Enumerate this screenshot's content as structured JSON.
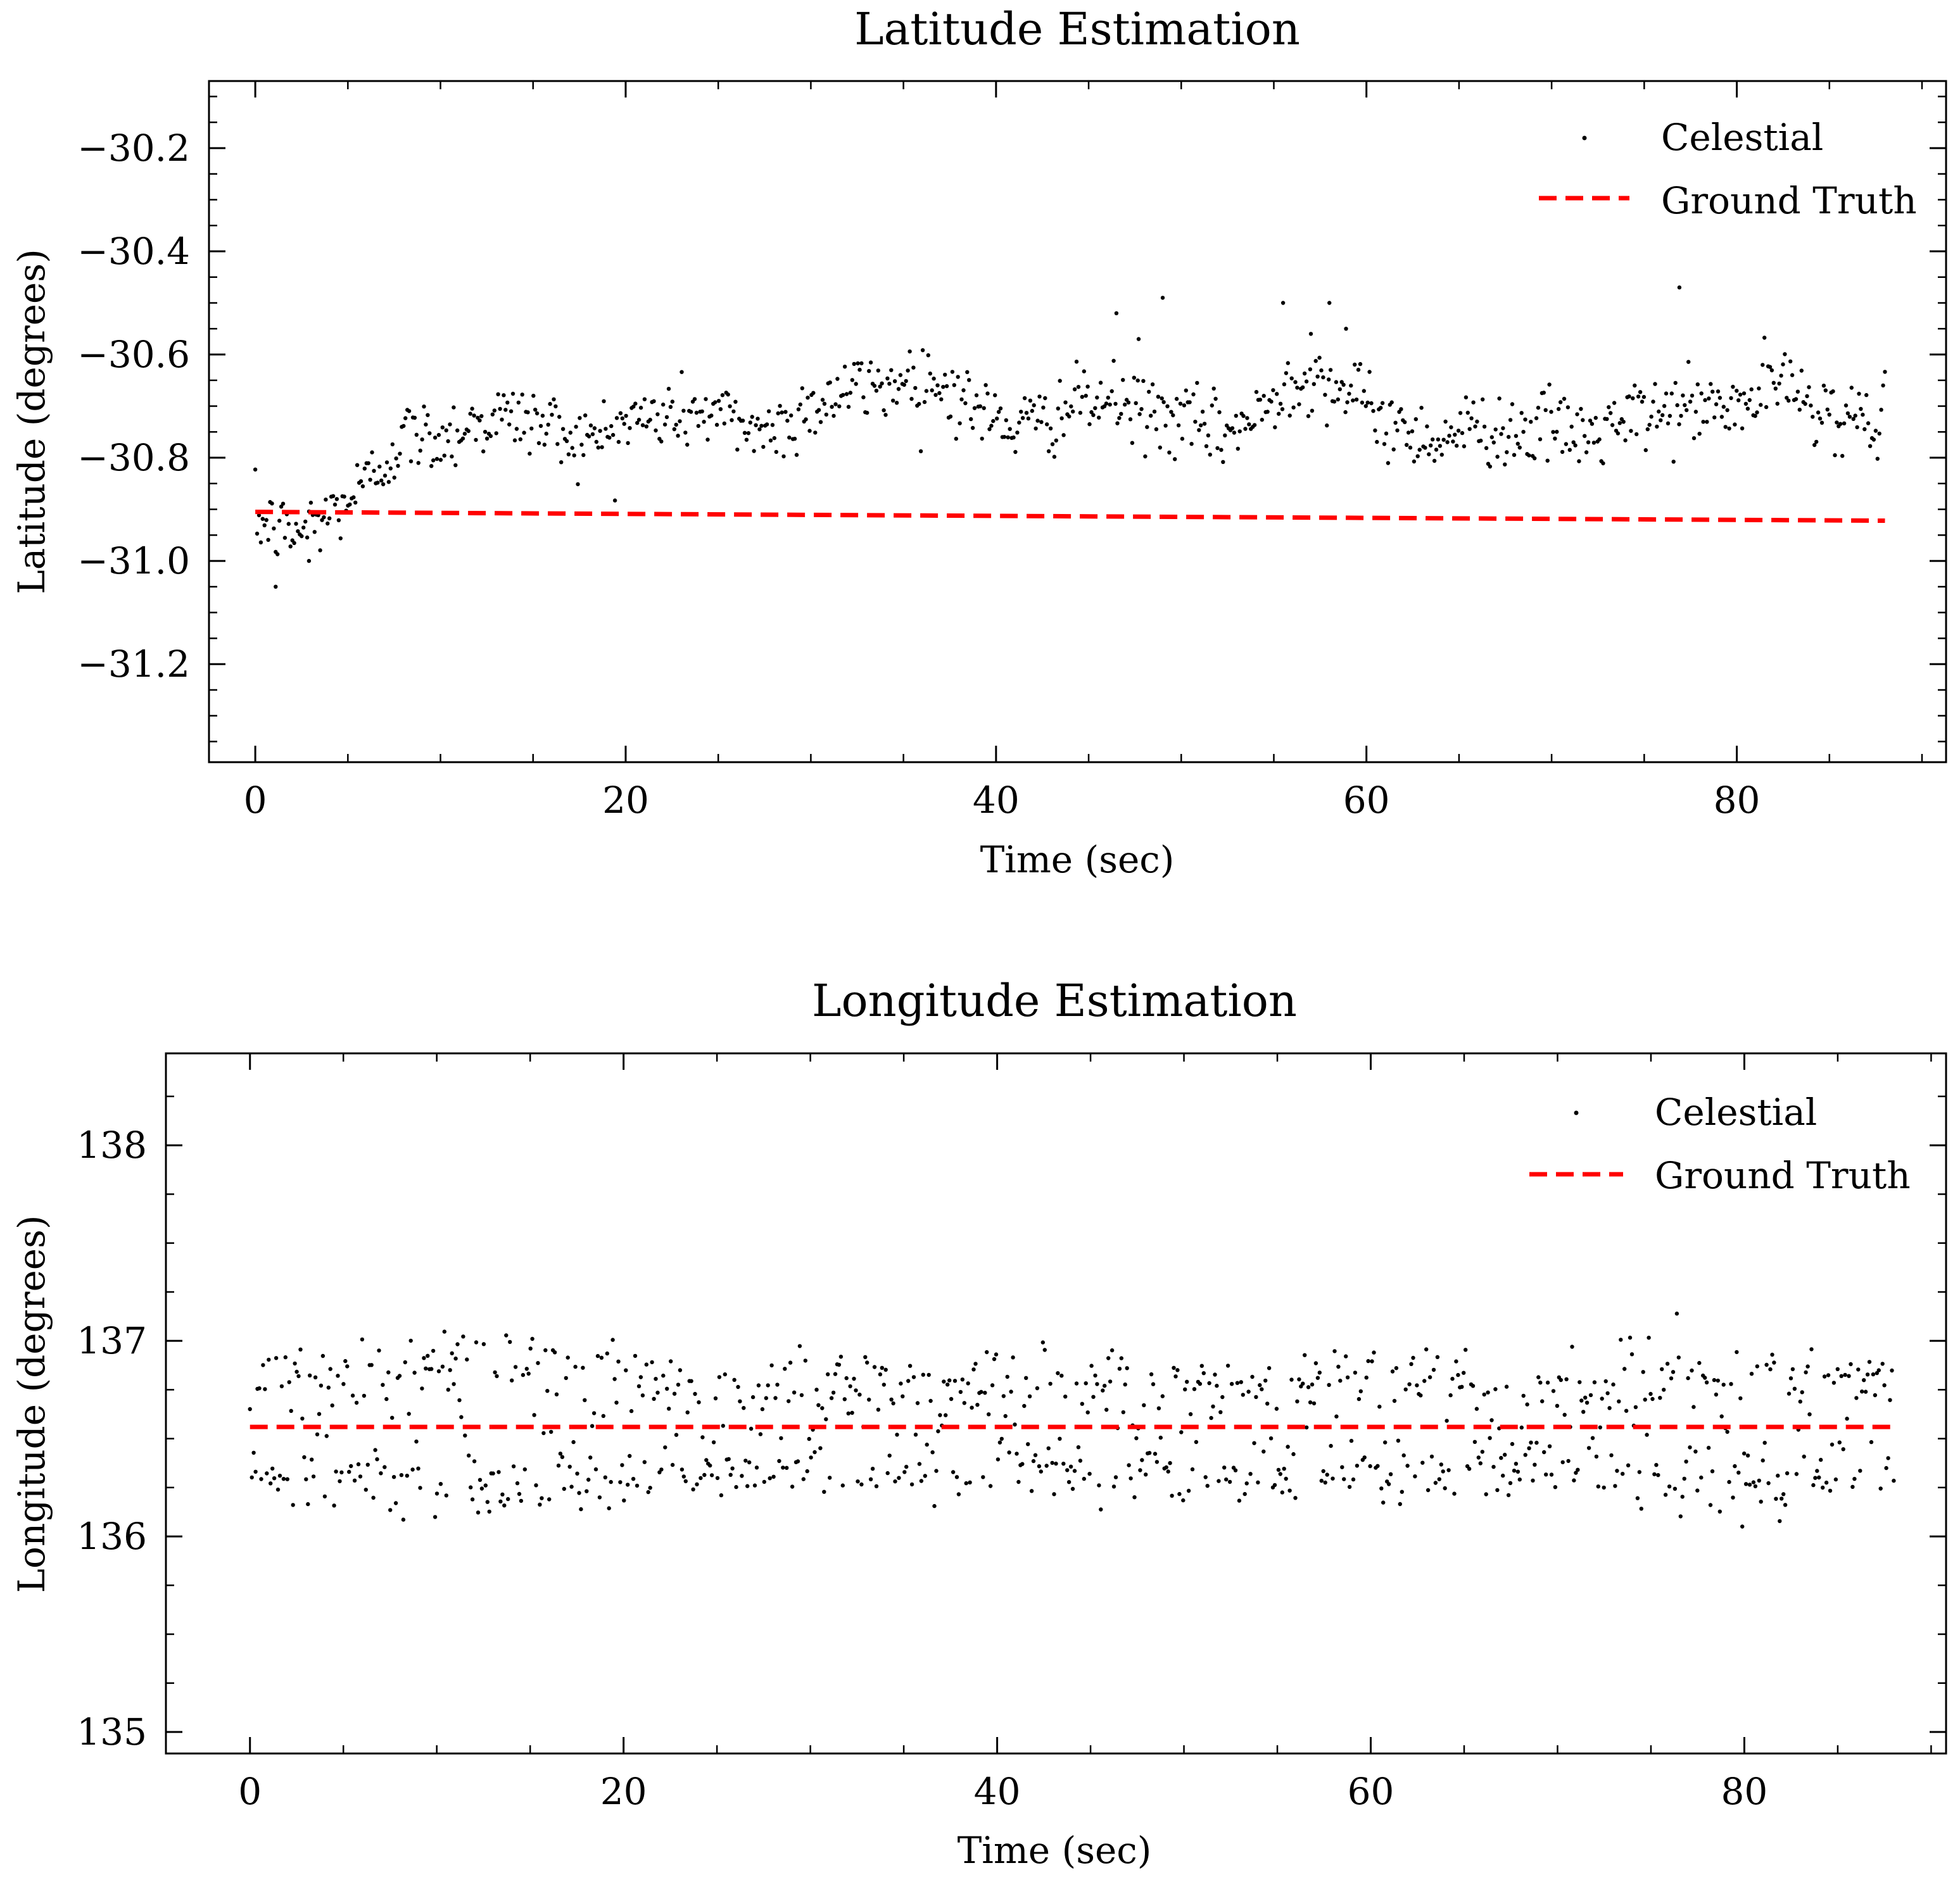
{
  "colors": {
    "scatter": "#000000",
    "ground_truth": "#ff0000",
    "axes": "#000000",
    "background": "#ffffff"
  },
  "chart_data": [
    {
      "type": "scatter",
      "title": "Latitude Estimation",
      "xlabel": "Time (sec)",
      "ylabel": "Latitude (degrees)",
      "xlim": [
        -2.5,
        91.3
      ],
      "ylim": [
        -31.39,
        -30.07
      ],
      "xticks": [
        0,
        20,
        40,
        60,
        80
      ],
      "xtick_labels": [
        "0",
        "20",
        "40",
        "60",
        "80"
      ],
      "yticks": [
        -30.2,
        -30.4,
        -30.6,
        -30.8,
        -31.0,
        -31.2
      ],
      "ytick_labels": [
        "−30.2",
        "−30.4",
        "−30.6",
        "−30.8",
        "−31.0",
        "−31.2"
      ],
      "legend": {
        "location": "upper right",
        "entries": [
          "Celestial",
          "Ground Truth"
        ]
      },
      "series": [
        {
          "name": "Celestial",
          "kind": "points",
          "n_points": 880,
          "x_range": [
            0,
            88
          ],
          "trend": [
            [
              0,
              -30.92
            ],
            [
              2,
              -30.95
            ],
            [
              4,
              -30.91
            ],
            [
              6,
              -30.85
            ],
            [
              8,
              -30.76
            ],
            [
              10,
              -30.76
            ],
            [
              12,
              -30.73
            ],
            [
              14,
              -30.72
            ],
            [
              16,
              -30.74
            ],
            [
              18,
              -30.77
            ],
            [
              20,
              -30.73
            ],
            [
              22,
              -30.72
            ],
            [
              24,
              -30.71
            ],
            [
              26,
              -30.73
            ],
            [
              28,
              -30.75
            ],
            [
              30,
              -30.7
            ],
            [
              32,
              -30.67
            ],
            [
              34,
              -30.66
            ],
            [
              36,
              -30.64
            ],
            [
              38,
              -30.68
            ],
            [
              40,
              -30.73
            ],
            [
              42,
              -30.74
            ],
            [
              44,
              -30.7
            ],
            [
              46,
              -30.69
            ],
            [
              48,
              -30.71
            ],
            [
              50,
              -30.73
            ],
            [
              52,
              -30.75
            ],
            [
              54,
              -30.73
            ],
            [
              56,
              -30.64
            ],
            [
              58,
              -30.65
            ],
            [
              60,
              -30.7
            ],
            [
              62,
              -30.75
            ],
            [
              64,
              -30.76
            ],
            [
              66,
              -30.74
            ],
            [
              68,
              -30.75
            ],
            [
              70,
              -30.74
            ],
            [
              72,
              -30.76
            ],
            [
              74,
              -30.73
            ],
            [
              76,
              -30.71
            ],
            [
              78,
              -30.7
            ],
            [
              80,
              -30.71
            ],
            [
              82,
              -30.65
            ],
            [
              84,
              -30.69
            ],
            [
              86,
              -30.73
            ],
            [
              88,
              -30.71
            ]
          ],
          "spread": 0.035,
          "outliers": [
            [
              1.1,
              -31.05
            ],
            [
              2.9,
              -31.0
            ],
            [
              46.5,
              -30.52
            ],
            [
              47.7,
              -30.57
            ],
            [
              49.0,
              -30.49
            ],
            [
              55.5,
              -30.5
            ],
            [
              58.0,
              -30.5
            ],
            [
              76.9,
              -30.47
            ],
            [
              57.0,
              -30.56
            ],
            [
              58.9,
              -30.55
            ]
          ]
        },
        {
          "name": "Ground Truth",
          "kind": "dashed-line",
          "x": [
            0,
            88
          ],
          "y": [
            -30.905,
            -30.922
          ]
        }
      ]
    },
    {
      "type": "scatter",
      "title": "Longitude Estimation",
      "xlabel": "Time (sec)",
      "ylabel": "Longitude (degrees)",
      "xlim": [
        -4.5,
        90.8
      ],
      "ylim": [
        134.89,
        138.47
      ],
      "xticks": [
        0,
        20,
        40,
        60,
        80
      ],
      "xtick_labels": [
        "0",
        "20",
        "40",
        "60",
        "80"
      ],
      "yticks": [
        135,
        136,
        137,
        138
      ],
      "ytick_labels": [
        "135",
        "136",
        "137",
        "138"
      ],
      "legend": {
        "location": "upper right",
        "entries": [
          "Celestial",
          "Ground Truth"
        ]
      },
      "series": [
        {
          "name": "Celestial",
          "kind": "points",
          "n_points": 880,
          "x_range": [
            0,
            88
          ],
          "center": 136.56,
          "band_halfwidth": [
            [
              0,
              0.3
            ],
            [
              10,
              0.42
            ],
            [
              20,
              0.32
            ],
            [
              30,
              0.28
            ],
            [
              40,
              0.28
            ],
            [
              50,
              0.27
            ],
            [
              60,
              0.34
            ],
            [
              70,
              0.25
            ],
            [
              76,
              0.38
            ],
            [
              88,
              0.33
            ]
          ],
          "spread": 0.12
        },
        {
          "name": "Ground Truth",
          "kind": "dashed-line",
          "x": [
            0,
            88
          ],
          "y": [
            136.56,
            136.56
          ]
        }
      ]
    }
  ]
}
